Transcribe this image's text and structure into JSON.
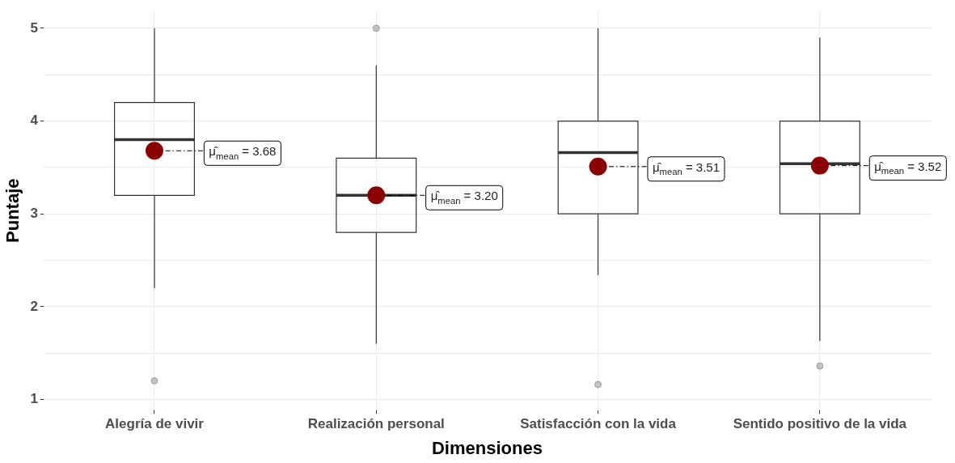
{
  "chart_data": {
    "type": "box",
    "xlabel": "Dimensiones",
    "ylabel": "Puntaje",
    "categories": [
      "Alegría de vivir",
      "Realización personal",
      "Satisfacción con la vida",
      "Sentido positivo de la vida"
    ],
    "boxes": [
      {
        "low": 2.2,
        "q1": 3.2,
        "median": 3.8,
        "q3": 4.2,
        "high": 5.0,
        "mean": 3.68,
        "outliers": [
          1.2
        ]
      },
      {
        "low": 1.6,
        "q1": 2.8,
        "median": 3.2,
        "q3": 3.6,
        "high": 4.6,
        "mean": 3.2,
        "outliers": [
          5.0
        ]
      },
      {
        "low": 2.34,
        "q1": 3.0,
        "median": 3.66,
        "q3": 4.0,
        "high": 5.0,
        "mean": 3.51,
        "outliers": [
          1.16
        ]
      },
      {
        "low": 1.63,
        "q1": 3.0,
        "median": 3.54,
        "q3": 4.0,
        "high": 4.9,
        "mean": 3.52,
        "outliers": [
          1.36
        ]
      }
    ],
    "ylim": [
      0.88,
      5.19
    ],
    "yticks": [
      1,
      {
        "value": 1.5,
        "label": null
      },
      2,
      {
        "value": 2.5,
        "label": null
      },
      3,
      {
        "value": 3.5,
        "label": null
      },
      4,
      {
        "value": 4.5,
        "label": null
      },
      5
    ],
    "grid": true,
    "annotations": [
      "μ̂$_{mean}$ = 3.68",
      {
        "text": "μ̂$_{mean}$ = 3.20",
        "x": "Realización personal",
        "y": 3.2
      },
      "μ̂$_{mean}$ = 3.51",
      {
        "text": "μ̂$_{mean}$ = 3.52",
        "x": "Sentido positivo de la vida",
        "y": 3.52
      }
    ]
  }
}
